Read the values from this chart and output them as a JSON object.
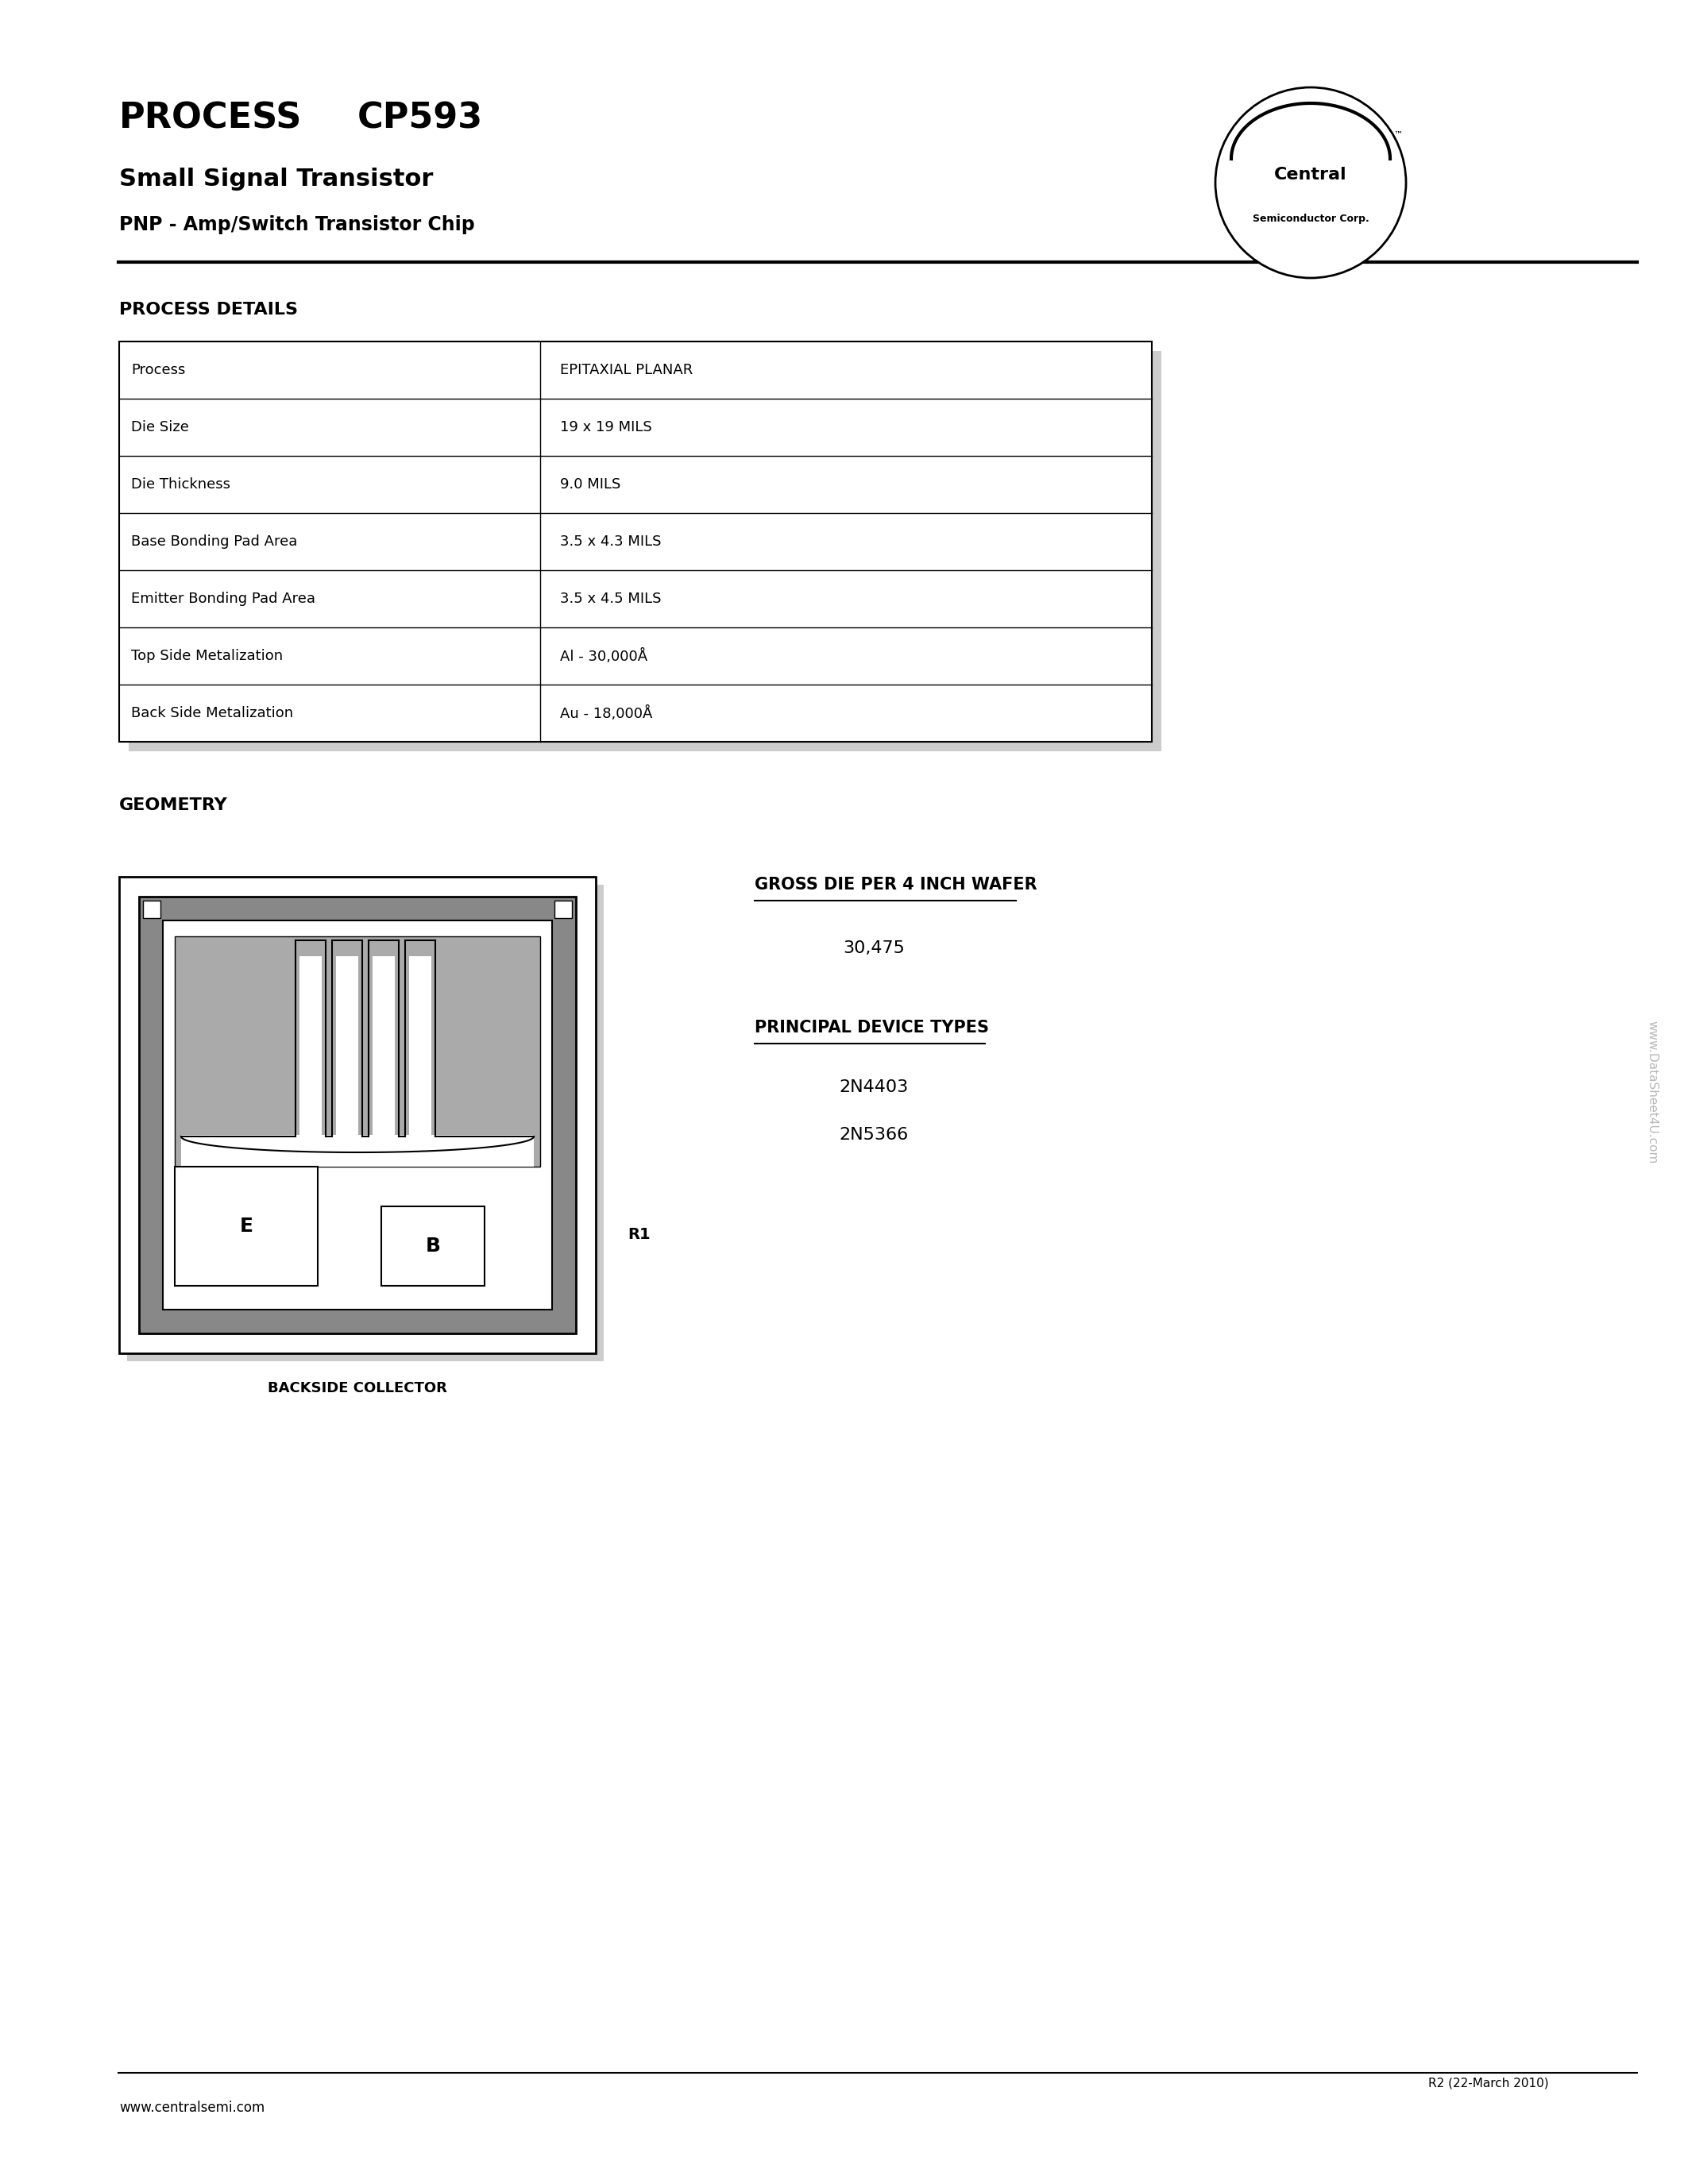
{
  "title_process": "PROCESS",
  "title_part": "CP593",
  "subtitle1": "Small Signal Transistor",
  "subtitle2": "PNP - Amp/Switch Transistor Chip",
  "section_process_details": "PROCESS DETAILS",
  "table_rows": [
    [
      "Process",
      "EPITAXIAL PLANAR"
    ],
    [
      "Die Size",
      "19 x 19 MILS"
    ],
    [
      "Die Thickness",
      "9.0 MILS"
    ],
    [
      "Base Bonding Pad Area",
      "3.5 x 4.3 MILS"
    ],
    [
      "Emitter Bonding Pad Area",
      "3.5 x 4.5 MILS"
    ],
    [
      "Top Side Metalization",
      "Al - 30,000Å"
    ],
    [
      "Back Side Metalization",
      "Au - 18,000Å"
    ]
  ],
  "section_geometry": "GEOMETRY",
  "label_backside": "BACKSIDE COLLECTOR",
  "label_r1": "R1",
  "gross_die_title": "GROSS DIE PER 4 INCH WAFER",
  "gross_die_value": "30,475",
  "principal_title": "PRINCIPAL DEVICE TYPES",
  "device1": "2N4403",
  "device2": "2N5366",
  "footer_revision": "R2 (22-March 2010)",
  "footer_website": "www.centralsemi.com",
  "watermark": "www.DataSheet4U.com",
  "bg_color": "#ffffff",
  "text_color": "#000000",
  "table_border_color": "#000000",
  "table_fill_color": "#ffffff",
  "header_line_color": "#000000",
  "shadow_color": "#cccccc"
}
